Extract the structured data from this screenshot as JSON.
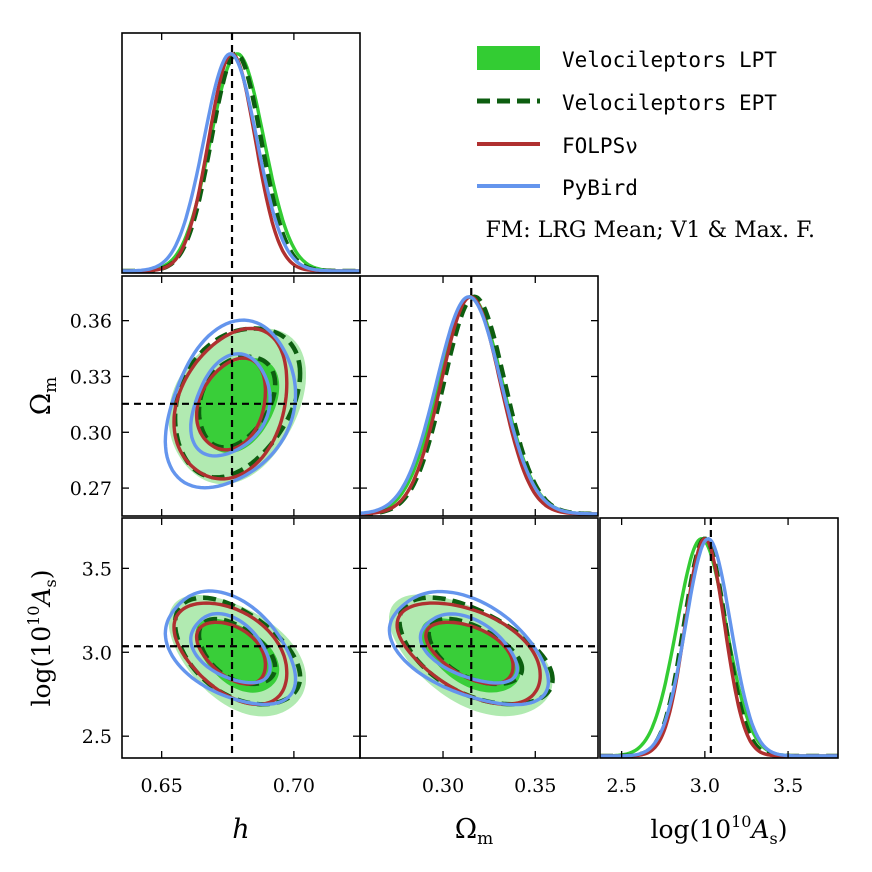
{
  "chart_data": {
    "type": "corner",
    "title": "FM: LRG Mean; V1 & Max. F.",
    "parameters": [
      {
        "key": "h",
        "label": "h",
        "range": [
          0.635,
          0.725
        ],
        "ticks": [
          0.65,
          0.7
        ],
        "tick_labels": [
          "0.65",
          "0.70"
        ],
        "fiducial": 0.6766
      },
      {
        "key": "Om",
        "label": "Ω_m",
        "range": [
          0.255,
          0.384
        ],
        "ticks": [
          0.27,
          0.3,
          0.33,
          0.36
        ],
        "tick_labels": [
          "0.27",
          "0.30",
          "0.33",
          "0.36"
        ],
        "fiducial": 0.3153
      },
      {
        "key": "lnAs",
        "label": "log(10^10 A_s)",
        "range": [
          2.37,
          3.8
        ],
        "ticks": [
          2.5,
          3.0,
          3.5
        ],
        "tick_labels": [
          "2.5",
          "3.0",
          "3.5"
        ],
        "fiducial": 3.036
      }
    ],
    "diag_ticks": {
      "Om": {
        "values": [
          0.3,
          0.35
        ],
        "labels": [
          "0.30",
          "0.35"
        ]
      },
      "lnAs": {
        "values": [
          2.5,
          3.0,
          3.5
        ],
        "labels": [
          "2.5",
          "3.0",
          "3.5"
        ]
      }
    },
    "series": [
      {
        "name": "Velocileptors LPT",
        "color": "#33cc33",
        "style": "filled",
        "mean": {
          "h": 0.6786,
          "Om": 0.315,
          "lnAs": 2.98
        },
        "sigma": {
          "h": 0.0101,
          "Om": 0.0172,
          "lnAs": 0.147
        },
        "corr": {
          "h_Om": 0.26,
          "h_lnAs": -0.45,
          "Om_lnAs": -0.5
        }
      },
      {
        "name": "Velocileptors EPT",
        "color": "#0d5e10",
        "style": "dashed",
        "mean": {
          "h": 0.6782,
          "Om": 0.317,
          "lnAs": 3.0
        },
        "sigma": {
          "h": 0.0094,
          "Om": 0.0165,
          "lnAs": 0.125
        },
        "corr": {
          "h_Om": 0.35,
          "h_lnAs": -0.45,
          "Om_lnAs": -0.5
        }
      },
      {
        "name": "FOLPSν",
        "color": "#b03030",
        "style": "solid",
        "mean": {
          "h": 0.6766,
          "Om": 0.315,
          "lnAs": 3.0
        },
        "sigma": {
          "h": 0.0088,
          "Om": 0.016,
          "lnAs": 0.118
        },
        "corr": {
          "h_Om": 0.3,
          "h_lnAs": -0.45,
          "Om_lnAs": -0.5
        }
      },
      {
        "name": "PyBird",
        "color": "#6495ed",
        "style": "solid",
        "mean": {
          "h": 0.676,
          "Om": 0.314,
          "lnAs": 3.02
        },
        "sigma": {
          "h": 0.01,
          "Om": 0.0175,
          "lnAs": 0.135
        },
        "corr": {
          "h_Om": 0.25,
          "h_lnAs": -0.45,
          "Om_lnAs": -0.5
        }
      }
    ]
  }
}
